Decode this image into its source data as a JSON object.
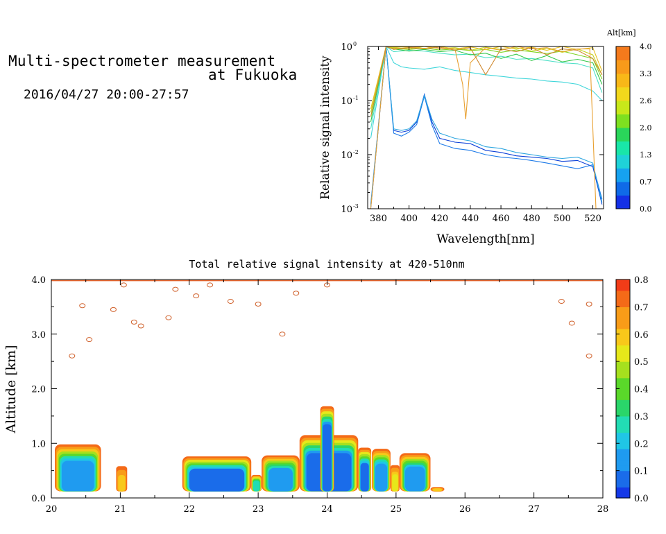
{
  "header": {
    "title_line1": "Multi-spectrometer measurement",
    "title_line2": "at Fukuoka",
    "datetime": "2016/04/27 20:00-27:57"
  },
  "chart_data": [
    {
      "type": "line",
      "xlabel": "Wavelength[nm]",
      "ylabel": "Relative signal intensity",
      "xlim": [
        373,
        527
      ],
      "ylim": [
        0.001,
        1
      ],
      "yscale": "log",
      "x_ticks": [
        "380",
        "400",
        "420",
        "440",
        "460",
        "480",
        "500",
        "520"
      ],
      "y_ticks": [
        {
          "base": "10",
          "exp": "-3"
        },
        {
          "base": "10",
          "exp": "-2"
        },
        {
          "base": "10",
          "exp": "-1"
        },
        {
          "base": "10",
          "exp": "0"
        }
      ],
      "colorbar": {
        "label": "Alt[km]",
        "ticks": [
          "0.0",
          "0.7",
          "1.3",
          "2.0",
          "2.6",
          "3.3",
          "4.0"
        ],
        "colors": [
          "#1430e6",
          "#0f6ae8",
          "#16a2ef",
          "#1fd2d8",
          "#19e6a8",
          "#2ad65a",
          "#7ee020",
          "#c8e81a",
          "#f2d81c",
          "#f8b818",
          "#f89a1a",
          "#f47a1c"
        ]
      },
      "series": [
        {
          "color": "#0b3fd8",
          "x": [
            375,
            385,
            390,
            395,
            400,
            405,
            410,
            415,
            420,
            430,
            440,
            450,
            460,
            470,
            480,
            490,
            500,
            510,
            520,
            526
          ],
          "y": [
            0.001,
            1,
            0.028,
            0.026,
            0.028,
            0.04,
            0.13,
            0.04,
            0.02,
            0.017,
            0.016,
            0.012,
            0.011,
            0.0095,
            0.009,
            0.0085,
            0.0075,
            0.0078,
            0.006,
            0.0012
          ]
        },
        {
          "color": "#1c7ae8",
          "x": [
            375,
            385,
            390,
            395,
            400,
            405,
            410,
            415,
            420,
            430,
            440,
            450,
            460,
            470,
            480,
            490,
            500,
            510,
            520,
            526
          ],
          "y": [
            0.0012,
            1,
            0.025,
            0.022,
            0.026,
            0.036,
            0.12,
            0.035,
            0.016,
            0.013,
            0.012,
            0.01,
            0.009,
            0.0085,
            0.0078,
            0.007,
            0.0062,
            0.0055,
            0.0065,
            0.0015
          ]
        },
        {
          "color": "#2ea6e0",
          "x": [
            375,
            385,
            390,
            395,
            400,
            405,
            410,
            415,
            420,
            430,
            440,
            450,
            460,
            470,
            480,
            490,
            500,
            510,
            520,
            526
          ],
          "y": [
            0.0011,
            1,
            0.03,
            0.028,
            0.03,
            0.042,
            0.125,
            0.045,
            0.025,
            0.02,
            0.018,
            0.014,
            0.013,
            0.011,
            0.01,
            0.009,
            0.0085,
            0.009,
            0.007,
            0.0013
          ]
        },
        {
          "color": "#3fd6da",
          "x": [
            375,
            385,
            390,
            395,
            400,
            410,
            420,
            430,
            440,
            450,
            460,
            470,
            480,
            490,
            500,
            510,
            520,
            526
          ],
          "y": [
            0.02,
            1,
            0.5,
            0.42,
            0.4,
            0.38,
            0.42,
            0.36,
            0.33,
            0.3,
            0.28,
            0.26,
            0.25,
            0.23,
            0.22,
            0.2,
            0.15,
            0.1
          ]
        },
        {
          "color": "#4fe0c8",
          "x": [
            375,
            385,
            390,
            400,
            410,
            420,
            430,
            440,
            450,
            460,
            470,
            480,
            490,
            500,
            510,
            520,
            526
          ],
          "y": [
            0.03,
            1,
            0.8,
            0.85,
            0.82,
            0.75,
            0.7,
            0.72,
            0.62,
            0.66,
            0.58,
            0.6,
            0.55,
            0.5,
            0.48,
            0.4,
            0.14
          ]
        },
        {
          "color": "#35c84a",
          "x": [
            375,
            385,
            390,
            400,
            410,
            420,
            430,
            440,
            450,
            460,
            470,
            480,
            490,
            500,
            510,
            520,
            526
          ],
          "y": [
            0.04,
            1,
            0.9,
            0.82,
            0.88,
            0.8,
            0.85,
            0.7,
            0.75,
            0.6,
            0.72,
            0.55,
            0.68,
            0.52,
            0.58,
            0.5,
            0.2
          ]
        },
        {
          "color": "#7fd426",
          "x": [
            375,
            385,
            390,
            400,
            410,
            420,
            430,
            440,
            450,
            460,
            470,
            480,
            490,
            500,
            510,
            520,
            526
          ],
          "y": [
            0.05,
            1,
            0.92,
            0.88,
            0.93,
            0.86,
            0.9,
            0.84,
            0.88,
            0.78,
            0.86,
            0.8,
            0.74,
            0.82,
            0.7,
            0.6,
            0.25
          ]
        },
        {
          "color": "#c4d420",
          "x": [
            375,
            385,
            390,
            400,
            410,
            420,
            430,
            440,
            450,
            460,
            470,
            480,
            490,
            500,
            510,
            520,
            526
          ],
          "y": [
            0.06,
            1,
            0.95,
            0.9,
            1,
            0.92,
            0.95,
            0.85,
            0.97,
            0.88,
            0.95,
            0.82,
            0.93,
            0.78,
            0.9,
            0.7,
            0.3
          ]
        },
        {
          "color": "#e8c020",
          "x": [
            375,
            385,
            390,
            400,
            410,
            420,
            430,
            440,
            450,
            460,
            470,
            480,
            490,
            500,
            510,
            520,
            526
          ],
          "y": [
            0.07,
            1,
            0.97,
            0.98,
            0.92,
            1,
            0.9,
            0.98,
            0.87,
            1,
            0.9,
            0.97,
            0.85,
            1,
            0.88,
            0.95,
            0.35
          ]
        },
        {
          "color": "#e8a030",
          "x": [
            375,
            385,
            390,
            400,
            410,
            420,
            430,
            435,
            437,
            440,
            450,
            460,
            470,
            480,
            490,
            500,
            510,
            518,
            522,
            526
          ],
          "y": [
            0.001,
            1,
            0.9,
            0.95,
            1,
            0.92,
            0.9,
            0.2,
            0.045,
            0.5,
            0.95,
            0.85,
            1,
            0.9,
            0.95,
            0.8,
            0.9,
            0.9,
            0.001,
            0.001
          ]
        },
        {
          "color": "#d08a30",
          "x": [
            375,
            385,
            390,
            400,
            410,
            420,
            430,
            440,
            450,
            460,
            470,
            480,
            490,
            500,
            510,
            520,
            526
          ],
          "y": [
            0.05,
            1,
            0.88,
            0.95,
            0.9,
            0.97,
            0.85,
            0.95,
            0.3,
            0.9,
            0.8,
            0.95,
            0.7,
            0.9,
            0.85,
            0.6,
            0.3
          ]
        }
      ]
    },
    {
      "type": "heatmap",
      "title": "Total relative signal intensity at 420-510nm",
      "ylabel": "Altitude [km]",
      "xlabel": "",
      "xlim": [
        20,
        28
      ],
      "ylim": [
        0,
        4
      ],
      "x_ticks": [
        "20",
        "21",
        "22",
        "23",
        "24",
        "25",
        "26",
        "27",
        "28"
      ],
      "y_ticks": [
        "0.0",
        "1.0",
        "2.0",
        "3.0",
        "4.0"
      ],
      "colorbar": {
        "ticks": [
          "0.0",
          "0.1",
          "0.2",
          "0.3",
          "0.4",
          "0.5",
          "0.6",
          "0.7",
          "0.8"
        ],
        "colors": [
          "#1438e8",
          "#1a6cea",
          "#1f9bf0",
          "#20c6e6",
          "#22dcb4",
          "#2ad66a",
          "#5ad82a",
          "#a6e01e",
          "#e6e81a",
          "#f8c81a",
          "#f89c18",
          "#f46a18",
          "#f23c18"
        ]
      },
      "regions": [
        {
          "t0": 20.05,
          "t1": 20.72,
          "alt_top": 0.98,
          "core": 0.12
        },
        {
          "t0": 20.94,
          "t1": 21.1,
          "alt_top": 0.58,
          "core": 0.62
        },
        {
          "t0": 21.9,
          "t1": 22.9,
          "alt_top": 0.76,
          "core": 0.1
        },
        {
          "t0": 22.9,
          "t1": 23.05,
          "alt_top": 0.42,
          "core": 0.25
        },
        {
          "t0": 23.05,
          "t1": 23.6,
          "alt_top": 0.78,
          "core": 0.15
        },
        {
          "t0": 23.6,
          "t1": 24.45,
          "alt_top": 1.15,
          "core": 0.05
        },
        {
          "t0": 23.9,
          "t1": 24.1,
          "alt_top": 1.68,
          "core": 0.05
        },
        {
          "t0": 24.45,
          "t1": 24.64,
          "alt_top": 0.92,
          "core": 0.1
        },
        {
          "t0": 24.65,
          "t1": 24.92,
          "alt_top": 0.9,
          "core": 0.12
        },
        {
          "t0": 24.92,
          "t1": 25.05,
          "alt_top": 0.6,
          "core": 0.55
        },
        {
          "t0": 25.05,
          "t1": 25.5,
          "alt_top": 0.82,
          "core": 0.14
        },
        {
          "t0": 25.5,
          "t1": 25.7,
          "alt_top": 0.2,
          "core": 0.6
        }
      ]
    }
  ]
}
